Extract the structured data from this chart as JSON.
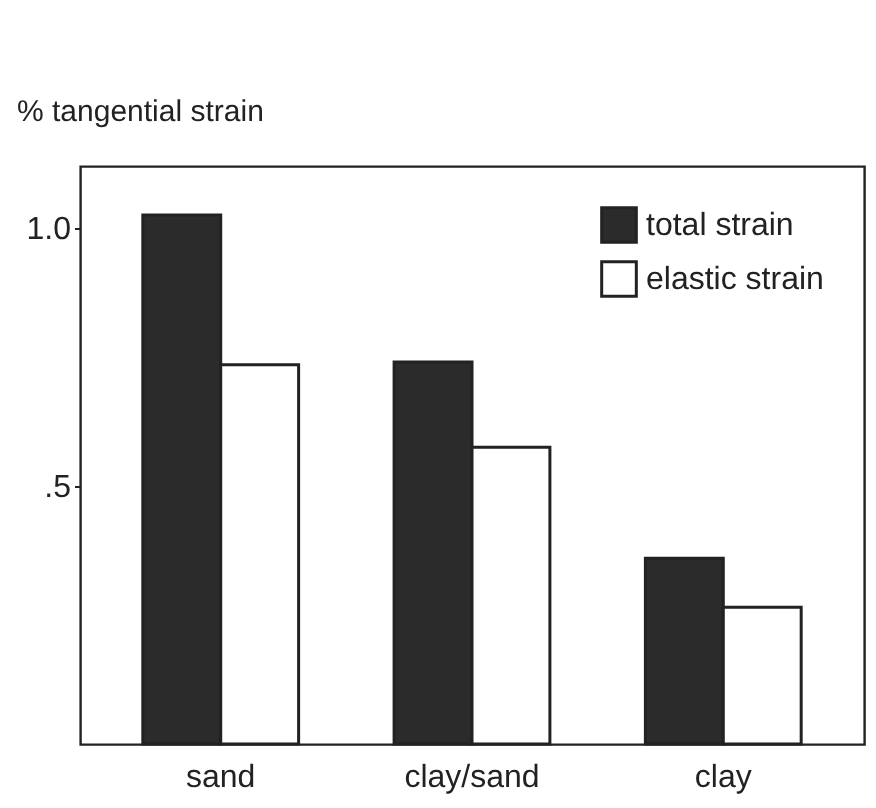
{
  "chart_data": {
    "type": "bar",
    "ylabel": "% tangential strain",
    "categories": [
      "sand",
      "clay/sand",
      "clay"
    ],
    "series": [
      {
        "name": "total strain",
        "color": "#2b2b2b",
        "values": [
          1.025,
          0.74,
          0.36
        ]
      },
      {
        "name": "elastic strain",
        "color": "#ffffff",
        "values": [
          0.735,
          0.575,
          0.265
        ]
      }
    ],
    "ylim": [
      0,
      1.12
    ],
    "yticks": [
      {
        "value": 0.5,
        "label": ".5"
      },
      {
        "value": 1,
        "label": "1.0"
      }
    ],
    "grid": false,
    "legend": "top right"
  }
}
